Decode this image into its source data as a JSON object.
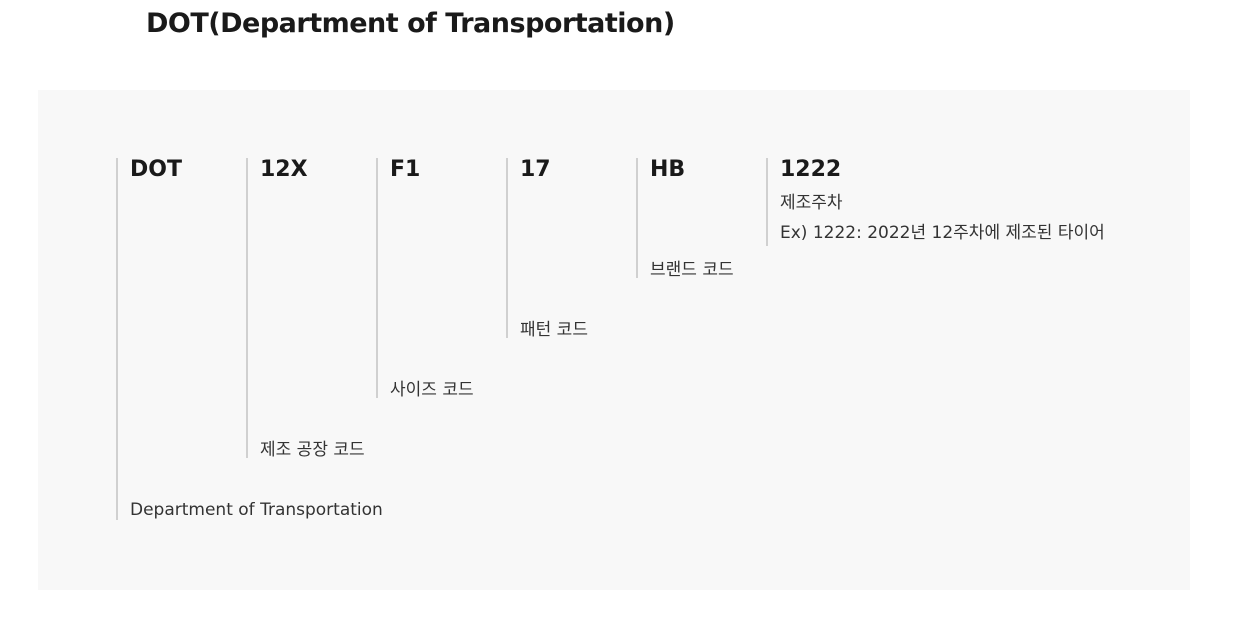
{
  "title": "DOT(Department of Transportation)",
  "segments": [
    {
      "code": "DOT",
      "description": [
        "Department of Transportation"
      ]
    },
    {
      "code": "12X",
      "description": [
        "제조 공장 코드"
      ]
    },
    {
      "code": "F1",
      "description": [
        "사이즈 코드"
      ]
    },
    {
      "code": "17",
      "description": [
        "패턴 코드"
      ]
    },
    {
      "code": "HB",
      "description": [
        "브랜드 코드"
      ]
    },
    {
      "code": "1222",
      "description": [
        "제조주차",
        "Ex) 1222: 2022년 12주차에 제조된 타이어"
      ]
    }
  ]
}
